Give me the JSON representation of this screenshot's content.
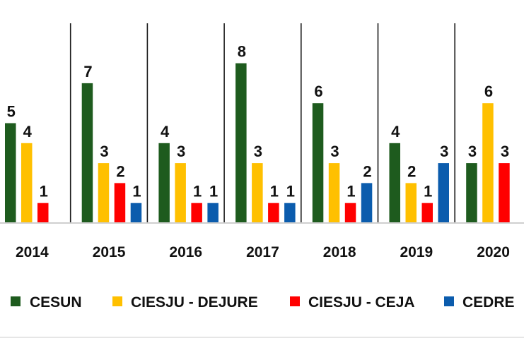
{
  "chart_data": {
    "type": "bar",
    "categories": [
      "2014",
      "2015",
      "2016",
      "2017",
      "2018",
      "2019",
      "2020"
    ],
    "series": [
      {
        "name": "CESUN",
        "color": "#1e5b1e",
        "values": [
          5,
          7,
          4,
          8,
          6,
          4,
          3
        ]
      },
      {
        "name": "CIESJU - DEJURE",
        "color": "#ffc000",
        "values": [
          4,
          3,
          3,
          3,
          3,
          2,
          6
        ]
      },
      {
        "name": "CIESJU - CEJA",
        "color": "#ff0000",
        "values": [
          1,
          2,
          1,
          1,
          1,
          1,
          3
        ]
      },
      {
        "name": "CEDRE",
        "color": "#0b5cad",
        "values": [
          null,
          1,
          1,
          1,
          2,
          3,
          null
        ]
      }
    ],
    "ylim": [
      0,
      10
    ],
    "grid": false,
    "legend_position": "bottom"
  }
}
